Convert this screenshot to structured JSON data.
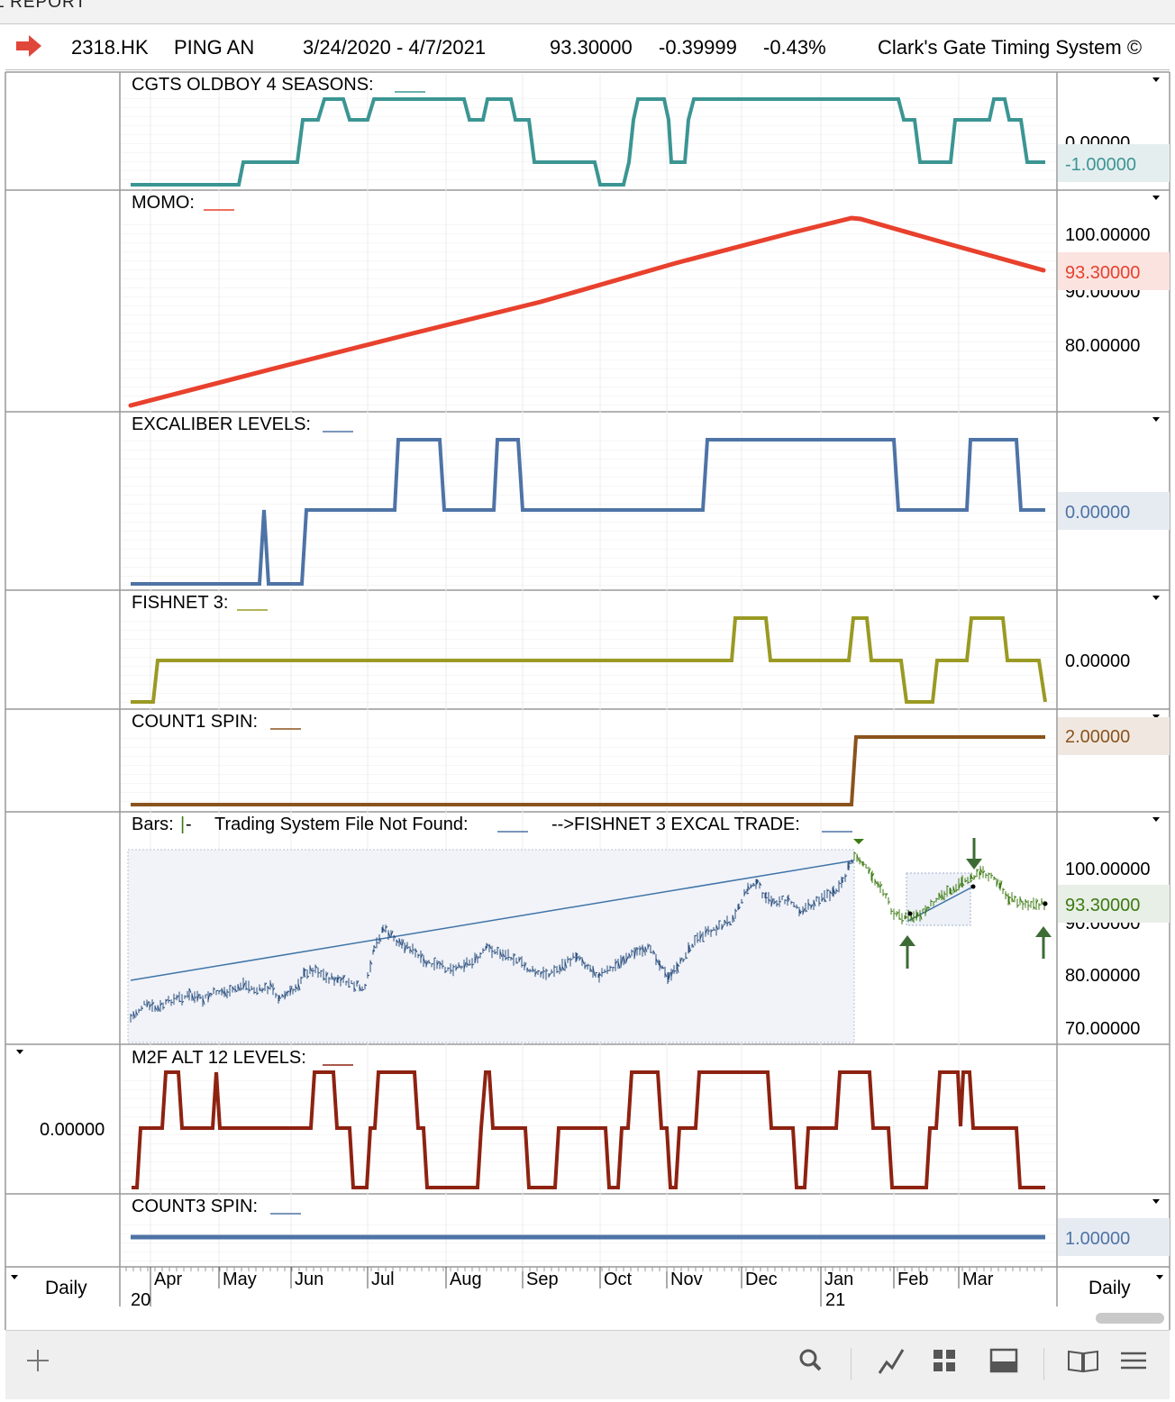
{
  "window": {
    "title_fragment": "L REPORT"
  },
  "header": {
    "symbol": "2318.HK",
    "name": "PING AN",
    "date_range": "3/24/2020 - 4/7/2021",
    "price": "93.30000",
    "change": "-0.39999",
    "change_pct": "-0.43%",
    "system": "Clark's Gate Timing System ©"
  },
  "colors": {
    "teal": "#3b9593",
    "red": "#e8412d",
    "blue": "#4e73a6",
    "olive": "#9a9a24",
    "brown": "#8a531d",
    "darkred": "#8e2211",
    "bar_blue": "#2b4f7e",
    "bar_green": "#3c7a12",
    "arrow_green": "#3d6b35"
  },
  "panels": {
    "cgts": {
      "label": "CGTS OLDBOY 4 SEASONS:",
      "value": "-1.00000",
      "axis": [
        "0.00000"
      ]
    },
    "momo": {
      "label": "MOMO:",
      "value": "93.30000",
      "axis": [
        "100.00000",
        "90.00000",
        "80.00000"
      ]
    },
    "excal": {
      "label": "EXCALIBER LEVELS:",
      "value": "0.00000"
    },
    "fishnet": {
      "label": "FISHNET 3:",
      "axis": [
        "0.00000"
      ]
    },
    "count1": {
      "label": "COUNT1 SPIN:",
      "value": "2.00000"
    },
    "bars": {
      "label": "Bars:",
      "label_mid": "Trading System File Not Found:",
      "label_right": "-->FISHNET 3 EXCAL TRADE:",
      "value": "93.30000",
      "axis": [
        "100.00000",
        "90.00000",
        "80.00000",
        "70.00000"
      ]
    },
    "m2f": {
      "label": "M2F ALT 12 LEVELS:",
      "axis": [
        "0.00000"
      ]
    },
    "count3": {
      "label": "COUNT3 SPIN:",
      "value": "1.00000"
    }
  },
  "xaxis": {
    "months": [
      "Apr",
      "May",
      "Jun",
      "Jul",
      "Aug",
      "Sep",
      "Oct",
      "Nov",
      "Dec",
      "Jan",
      "Feb",
      "Mar"
    ],
    "years": [
      "20",
      "21"
    ],
    "left_period": "Daily",
    "right_period": "Daily"
  },
  "toolbar": {
    "icons": [
      "add-icon",
      "search-icon",
      "draw-line-icon",
      "grid-layout-icon",
      "panel-layout-icon",
      "book-icon",
      "menu-icon"
    ]
  }
}
